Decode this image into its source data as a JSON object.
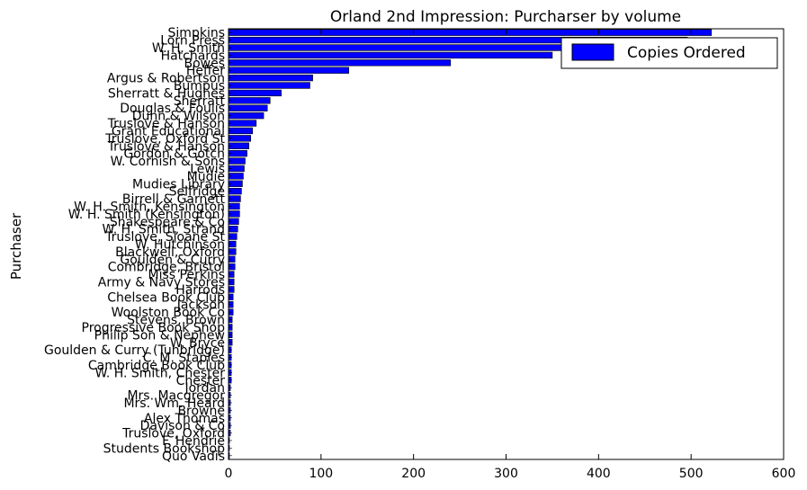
{
  "chart_data": {
    "type": "bar",
    "orientation": "horizontal",
    "title": "Orland 2nd Impression: Purcharser by volume",
    "xlabel": "",
    "ylabel": "Purchaser",
    "xlim": [
      0,
      600
    ],
    "xticks": [
      0,
      100,
      200,
      300,
      400,
      500,
      600
    ],
    "grid": false,
    "legend": {
      "position": "top-right",
      "entries": [
        "Copies Ordered"
      ]
    },
    "bar_color": "#0000ff",
    "categories": [
      "Simpkins",
      "Lorn Press",
      "W. H. Smith",
      "Hatchards",
      "Bowes",
      "Heffer",
      "Argus & Robertson",
      "Bumpus",
      "Sherratt & Hughes",
      "Sherratt",
      "Douglas & Foulis",
      "Dunn & Wilson",
      "Truslove & Hanson",
      "Grant Educational",
      "Truslove, Oxford St",
      "Truslove & Hanson",
      "Gordon & Gotch",
      "W. Cornish & Sons",
      "Lewis",
      "Mudie",
      "Mudies Library",
      "Selfridge",
      "Birrell & Garnett",
      "W. H. Smith, Kensington",
      "W. H. Smith (Kensington)",
      "Shakespeare & Co",
      "W. H. Smith, Strand",
      "Truslove, Sloane St",
      "W. Hutchinson",
      "Blackwell, Oxford",
      "Goulden & Curry",
      "Combridge, Bristol",
      "Miss Perkins",
      "Army & Navy Stores",
      "Harrods",
      "Chelsea Book Club",
      "Jackson",
      "Woolston Book Co",
      "Stevens, Brown",
      "Progressive Book Shop",
      "Philip Son & Nephew",
      "W. Bryce",
      "Goulden & Curry (Tunbridge)",
      "C. M. Staples",
      "Cambridge Book Club",
      "W. H. Smith, Chester",
      "Chester",
      "Jordan",
      "Mrs. Macgregor",
      "Mrs. Wm. Heard",
      "Browne",
      "Alex Thomas",
      "Davison & Co",
      "Truslove, Oxford",
      "F. Hendrie",
      "Students Bookshop",
      "Quo Vadis"
    ],
    "values": [
      522,
      496,
      495,
      350,
      240,
      130,
      91,
      88,
      57,
      45,
      42,
      38,
      30,
      26,
      24,
      22,
      20,
      18,
      17,
      16,
      15,
      14,
      13,
      12,
      12,
      11,
      10,
      9,
      8,
      8,
      7,
      7,
      6,
      6,
      6,
      5,
      5,
      5,
      4,
      4,
      4,
      4,
      3,
      3,
      3,
      3,
      3,
      2,
      2,
      2,
      2,
      2,
      2,
      2,
      1,
      1,
      1
    ]
  }
}
